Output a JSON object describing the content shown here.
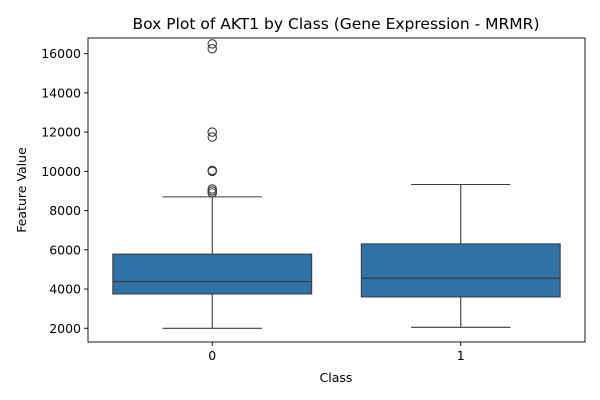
{
  "chart_data": {
    "type": "box",
    "title": "Box Plot of AKT1 by Class (Gene Expression - MRMR)",
    "xlabel": "Class",
    "ylabel": "Feature Value",
    "categories": [
      "0",
      "1"
    ],
    "ylim": [
      1300,
      16800
    ],
    "yticks": [
      2000,
      4000,
      6000,
      8000,
      10000,
      12000,
      14000,
      16000
    ],
    "box_color": "#2f72a8",
    "line_color": "#3c3c3c",
    "boxes": [
      {
        "category": "0",
        "whisker_low": 2000,
        "q1": 3750,
        "median": 4380,
        "q3": 5780,
        "whisker_high": 8700,
        "outliers": [
          8900,
          9000,
          9100,
          10000,
          10050,
          11750,
          12000,
          16250,
          16500
        ]
      },
      {
        "category": "1",
        "whisker_low": 2050,
        "q1": 3600,
        "median": 4550,
        "q3": 6300,
        "whisker_high": 9330,
        "outliers": []
      }
    ]
  }
}
